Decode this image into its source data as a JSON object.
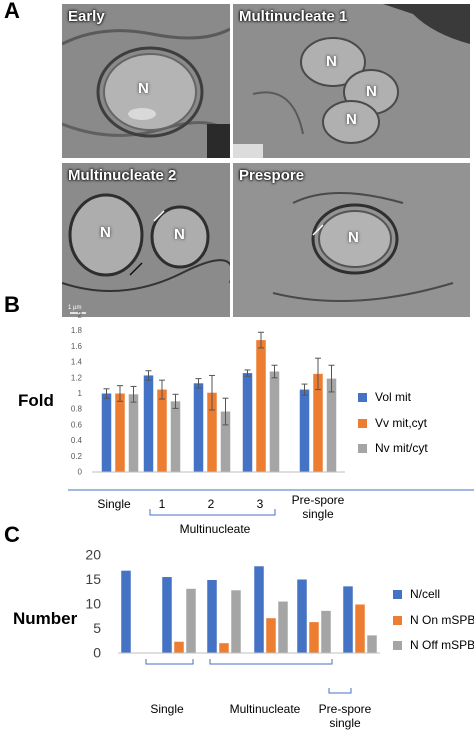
{
  "panel_a": {
    "letter": "A",
    "micrographs": [
      {
        "label": "Early",
        "nuclei": [
          "N"
        ]
      },
      {
        "label": "Multinucleate 1",
        "nuclei": [
          "N",
          "N",
          "N"
        ]
      },
      {
        "label": "Multinucleate 2",
        "nuclei": [
          "N",
          "N"
        ],
        "scale_text": "1 µm"
      },
      {
        "label": "Prespore",
        "nuclei": [
          "N"
        ]
      }
    ]
  },
  "panel_b": {
    "letter": "B",
    "ylabel": "Fold",
    "x_labels": [
      "Single",
      "1",
      "2",
      "3",
      "Pre-spore\nsingle"
    ],
    "group_label": "Multinucleate",
    "colors": {
      "vol": "#4472c4",
      "vv": "#ed7d31",
      "nv": "#a5a5a5"
    }
  },
  "panel_c": {
    "letter": "C",
    "ylabel": "Number",
    "group_labels": [
      "Single",
      "Multinucleate",
      "Pre-spore\nsingle"
    ]
  },
  "chart_data": [
    {
      "type": "bar",
      "categories": [
        "Single",
        "1",
        "2",
        "3",
        "Pre-spore single"
      ],
      "series": [
        {
          "name": "Vol mit",
          "color": "#4472c4",
          "values": [
            1.0,
            1.23,
            1.13,
            1.26,
            1.05
          ],
          "errors": [
            0.06,
            0.06,
            0.06,
            0.04,
            0.07
          ]
        },
        {
          "name": "Vv mit,cyt",
          "color": "#ed7d31",
          "values": [
            1.0,
            1.05,
            1.01,
            1.68,
            1.25
          ],
          "errors": [
            0.1,
            0.12,
            0.22,
            0.1,
            0.2
          ]
        },
        {
          "name": "Nv mit/cyt",
          "color": "#a5a5a5",
          "values": [
            0.99,
            0.9,
            0.77,
            1.28,
            1.19
          ],
          "errors": [
            0.1,
            0.09,
            0.17,
            0.08,
            0.17
          ]
        }
      ],
      "ylim": [
        0,
        2
      ],
      "yticks": [
        "0",
        "0.2",
        "0.4",
        "0.6",
        "0.8",
        "1",
        "1.2",
        "1.4",
        "1.6",
        "1.8",
        "2"
      ],
      "ylabel": "Fold",
      "legend": "right",
      "grid": false
    },
    {
      "type": "bar",
      "series": [
        {
          "name": "N/cell",
          "color": "#4472c4",
          "values": [
            16.8,
            15.5,
            14.9,
            17.7,
            15.0,
            13.6
          ]
        },
        {
          "name": "N On mSPB",
          "color": "#ed7d31",
          "values": [
            null,
            2.3,
            2.0,
            7.1,
            6.3,
            9.9
          ]
        },
        {
          "name": "N Off mSPB",
          "color": "#a5a5a5",
          "values": [
            null,
            13.1,
            12.8,
            10.5,
            8.6,
            3.6
          ]
        }
      ],
      "ylim": [
        0,
        20
      ],
      "yticks": [
        "0",
        "5",
        "10",
        "15",
        "20"
      ],
      "ylabel": "Number",
      "legend": "right",
      "grid": false
    }
  ]
}
